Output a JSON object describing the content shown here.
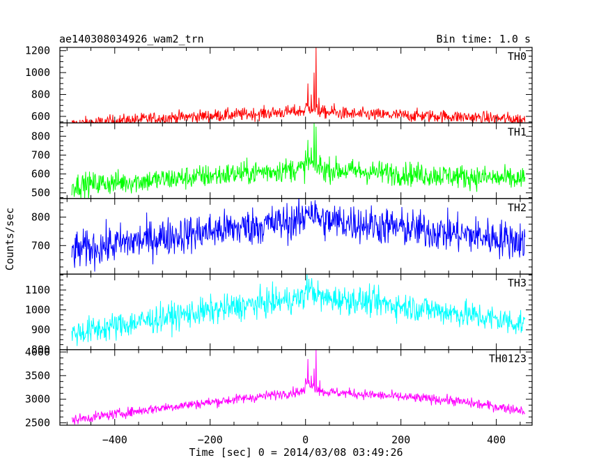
{
  "chart_data": {
    "type": "line",
    "title": "ae140308034926_wam2_trn",
    "bin_time_label": "Bin time: 1.0 s",
    "xlabel": "Time [sec] 0 = 2014/03/08 03:49:26",
    "ylabel": "Counts/sec",
    "xlim": [
      -515,
      475
    ],
    "x_ticks": [
      -400,
      -200,
      0,
      200,
      400
    ],
    "x_tick_labels": [
      "−400",
      "−200",
      "0",
      "200",
      "400"
    ],
    "x_range_data": [
      -490,
      460
    ],
    "grid": false,
    "panels": [
      {
        "name": "TH0",
        "color": "#ff0000",
        "ylim": [
          540,
          1230
        ],
        "y_ticks": [
          600,
          800,
          1000,
          1200
        ],
        "y_tick_labels": [
          "600",
          "800",
          "1000",
          "1200"
        ],
        "profile": [
          [
            -490,
            530
          ],
          [
            -300,
            585
          ],
          [
            -100,
            625
          ],
          [
            0,
            650
          ],
          [
            100,
            620
          ],
          [
            300,
            600
          ],
          [
            460,
            570
          ]
        ],
        "noise": 42,
        "bursts": [
          [
            5,
            900
          ],
          [
            12,
            800
          ],
          [
            18,
            1000
          ],
          [
            22,
            1230
          ],
          [
            28,
            770
          ],
          [
            60,
            720
          ]
        ]
      },
      {
        "name": "TH1",
        "color": "#00ff00",
        "ylim": [
          470,
          870
        ],
        "y_ticks": [
          500,
          600,
          700,
          800
        ],
        "y_tick_labels": [
          "500",
          "600",
          "700",
          "800"
        ],
        "profile": [
          [
            -490,
            540
          ],
          [
            -300,
            570
          ],
          [
            -100,
            610
          ],
          [
            0,
            630
          ],
          [
            100,
            615
          ],
          [
            300,
            590
          ],
          [
            460,
            570
          ]
        ],
        "noise": 45,
        "bursts": [
          [
            5,
            780
          ],
          [
            12,
            740
          ],
          [
            18,
            870
          ],
          [
            22,
            850
          ],
          [
            30,
            700
          ]
        ]
      },
      {
        "name": "TH2",
        "color": "#0000ff",
        "ylim": [
          600,
          865
        ],
        "y_ticks": [
          700,
          800
        ],
        "y_tick_labels": [
          "700",
          "800"
        ],
        "profile": [
          [
            -490,
            680
          ],
          [
            -300,
            730
          ],
          [
            -100,
            770
          ],
          [
            0,
            790
          ],
          [
            100,
            780
          ],
          [
            300,
            745
          ],
          [
            460,
            715
          ]
        ],
        "noise": 48,
        "bursts": []
      },
      {
        "name": "TH3",
        "color": "#00ffff",
        "ylim": [
          800,
          1180
        ],
        "y_ticks": [
          800,
          900,
          1000,
          1100
        ],
        "y_tick_labels": [
          "800",
          "900",
          "1000",
          "1100"
        ],
        "profile": [
          [
            -490,
            880
          ],
          [
            -300,
            960
          ],
          [
            -100,
            1030
          ],
          [
            0,
            1060
          ],
          [
            100,
            1050
          ],
          [
            300,
            990
          ],
          [
            460,
            930
          ]
        ],
        "noise": 50,
        "bursts": []
      },
      {
        "name": "TH0123",
        "color": "#ff00ff",
        "ylim": [
          2450,
          4050
        ],
        "y_ticks": [
          2500,
          3000,
          3500,
          4000
        ],
        "y_tick_labels": [
          "2500",
          "3000",
          "3500",
          "4000"
        ],
        "profile": [
          [
            -490,
            2560
          ],
          [
            -300,
            2820
          ],
          [
            -100,
            3050
          ],
          [
            0,
            3180
          ],
          [
            100,
            3120
          ],
          [
            300,
            2980
          ],
          [
            460,
            2760
          ]
        ],
        "noise": 75,
        "bursts": [
          [
            5,
            3850
          ],
          [
            12,
            3500
          ],
          [
            18,
            3650
          ],
          [
            22,
            4050
          ],
          [
            30,
            3400
          ]
        ]
      }
    ]
  }
}
